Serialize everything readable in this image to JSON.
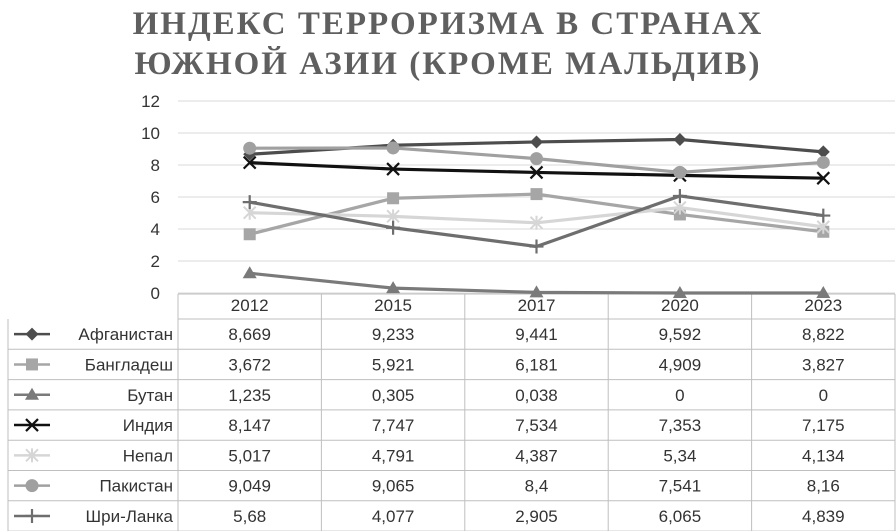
{
  "title_line1": "ИНДЕКС ТЕРРОРИЗМА В СТРАНАХ",
  "title_line2": "ЮЖНОЙ АЗИИ (КРОМЕ МАЛЬДИВ)",
  "chart_data": {
    "type": "line",
    "title": "ИНДЕКС ТЕРРОРИЗМА В СТРАНАХ ЮЖНОЙ АЗИИ (КРОМЕ МАЛЬДИВ)",
    "categories": [
      "2012",
      "2015",
      "2017",
      "2020",
      "2023"
    ],
    "ylim": [
      0,
      12
    ],
    "yticks": [
      0,
      2,
      4,
      6,
      8,
      10,
      12
    ],
    "grid": true,
    "legend": "data-table",
    "series": [
      {
        "name": "Афганистан",
        "marker": "diamond",
        "color": "#4d4d4d",
        "values": [
          8.669,
          9.233,
          9.441,
          9.592,
          8.822
        ],
        "labels": [
          "8,669",
          "9,233",
          "9,441",
          "9,592",
          "8,822"
        ]
      },
      {
        "name": "Бангладеш",
        "marker": "square",
        "color": "#a6a6a6",
        "values": [
          3.672,
          5.921,
          6.181,
          4.909,
          3.827
        ],
        "labels": [
          "3,672",
          "5,921",
          "6,181",
          "4,909",
          "3,827"
        ]
      },
      {
        "name": "Бутан",
        "marker": "triangle",
        "color": "#7a7a7a",
        "values": [
          1.235,
          0.305,
          0.038,
          0,
          0
        ],
        "labels": [
          "1,235",
          "0,305",
          "0,038",
          "0",
          "0"
        ]
      },
      {
        "name": "Индия",
        "marker": "x",
        "color": "#111111",
        "values": [
          8.147,
          7.747,
          7.534,
          7.353,
          7.175
        ],
        "labels": [
          "8,147",
          "7,747",
          "7,534",
          "7,353",
          "7,175"
        ]
      },
      {
        "name": "Непал",
        "marker": "star",
        "color": "#d6d6d6",
        "values": [
          5.017,
          4.791,
          4.387,
          5.34,
          4.134
        ],
        "labels": [
          "5,017",
          "4,791",
          "4,387",
          "5,34",
          "4,134"
        ]
      },
      {
        "name": "Пакистан",
        "marker": "circle",
        "color": "#a0a0a0",
        "values": [
          9.049,
          9.065,
          8.4,
          7.541,
          8.16
        ],
        "labels": [
          "9,049",
          "9,065",
          "8,4",
          "7,541",
          "8,16"
        ]
      },
      {
        "name": "Шри-Ланка",
        "marker": "plus",
        "color": "#6e6e6e",
        "values": [
          5.68,
          4.077,
          2.905,
          6.065,
          4.839
        ],
        "labels": [
          "5,68",
          "4,077",
          "2,905",
          "6,065",
          "4,839"
        ]
      }
    ]
  }
}
